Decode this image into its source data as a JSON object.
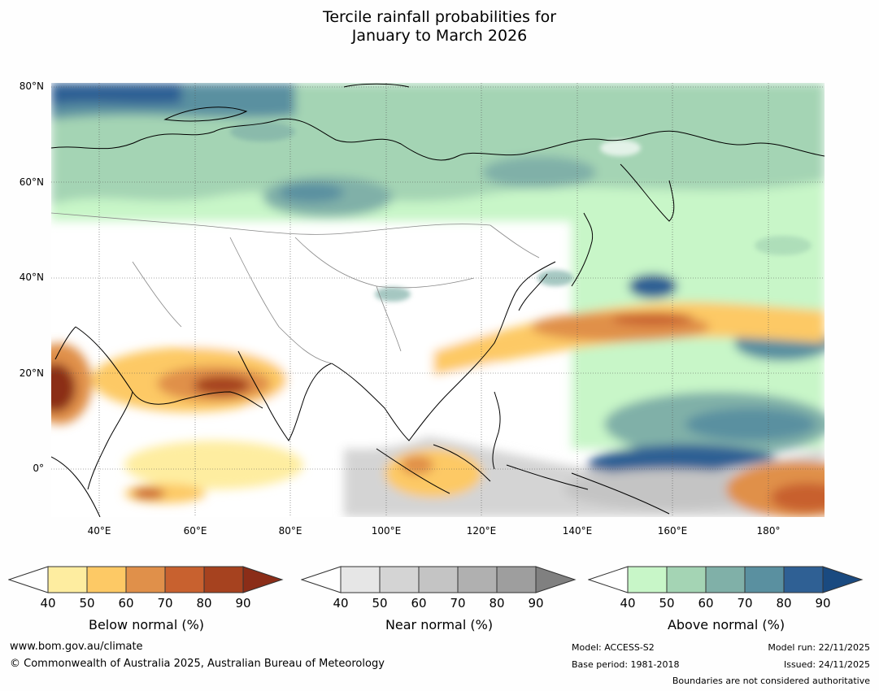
{
  "title": {
    "line1": "Tercile rainfall probabilities for",
    "line2": "January to March 2026"
  },
  "map": {
    "lat_labels": [
      "80°N",
      "60°N",
      "40°N",
      "20°N",
      "0°"
    ],
    "lon_labels": [
      "40°E",
      "60°E",
      "80°E",
      "100°E",
      "120°E",
      "140°E",
      "160°E",
      "180°"
    ],
    "lat_range": [
      -10,
      81
    ],
    "lon_range": [
      30,
      192
    ]
  },
  "colorbars": {
    "below": {
      "label": "Below normal (%)",
      "ticks": [
        "40",
        "50",
        "60",
        "70",
        "80",
        "90"
      ],
      "colors": [
        "#ffffff",
        "#feeda0",
        "#fdc965",
        "#e0904a",
        "#c8612f",
        "#a6421f",
        "#8b2d18"
      ]
    },
    "near": {
      "label": "Near normal (%)",
      "ticks": [
        "40",
        "50",
        "60",
        "70",
        "80",
        "90"
      ],
      "colors": [
        "#ffffff",
        "#e6e6e6",
        "#d4d4d4",
        "#c4c4c4",
        "#b0b0b0",
        "#9e9e9e",
        "#808080"
      ]
    },
    "above": {
      "label": "Above normal (%)",
      "ticks": [
        "40",
        "50",
        "60",
        "70",
        "80",
        "90"
      ],
      "colors": [
        "#ffffff",
        "#c8f6c8",
        "#a4d4b4",
        "#80b0a8",
        "#5a90a0",
        "#2f6094",
        "#1a4a80"
      ]
    }
  },
  "footer": {
    "website": "www.bom.gov.au/climate",
    "copyright": "© Commonwealth of Australia 2025, Australian Bureau of Meteorology",
    "model": "Model: ACCESS-S2",
    "base_period": "Base period: 1981-2018",
    "model_run": "Model run: 22/11/2025",
    "issued": "Issued: 24/11/2025",
    "disclaimer": "Boundaries are not considered authoritative"
  }
}
